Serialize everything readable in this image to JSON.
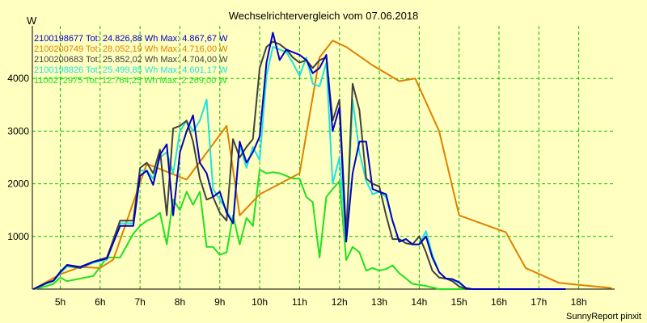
{
  "chart_data": {
    "type": "line",
    "title": "Wechselrichtervergleich vom 07.06.2018",
    "ylabel": "W",
    "xlabel": "",
    "credit": "SunnyReport pinxit",
    "ylim": [
      0,
      5000
    ],
    "xlim": [
      4.3,
      18.9
    ],
    "y_ticks": [
      1000,
      2000,
      3000,
      4000
    ],
    "y_tick_labels": [
      "1000",
      "2000",
      "3000",
      "4000"
    ],
    "x_ticks": [
      5,
      6,
      7,
      8,
      9,
      10,
      11,
      12,
      13,
      14,
      15,
      16,
      17,
      18
    ],
    "x_tick_labels": [
      "5h",
      "6h",
      "7h",
      "8h",
      "9h",
      "10h",
      "11h",
      "12h",
      "13h",
      "14h",
      "15h",
      "16h",
      "17h",
      "18h"
    ],
    "grid": true,
    "legend_position": "top-left",
    "colors": {
      "background": "#ffffc0",
      "grid": "#00c000",
      "axes": "#000000"
    },
    "series": [
      {
        "name": "2100198677",
        "legend": "2100198677 Tot: 24.826,88 Wh Max: 4.867,67 W",
        "color": "#0000c0",
        "x": [
          4.33,
          4.67,
          4.83,
          5.0,
          5.17,
          5.5,
          5.83,
          6.17,
          6.5,
          6.83,
          7.0,
          7.17,
          7.33,
          7.5,
          7.67,
          7.83,
          8.0,
          8.17,
          8.33,
          8.5,
          8.67,
          8.83,
          9.0,
          9.17,
          9.33,
          9.5,
          9.67,
          9.83,
          10.0,
          10.17,
          10.33,
          10.5,
          10.67,
          10.83,
          11.0,
          11.17,
          11.33,
          11.5,
          11.67,
          11.83,
          12.0,
          12.17,
          12.33,
          12.5,
          12.67,
          12.83,
          13.0,
          13.17,
          13.33,
          13.5,
          13.67,
          13.83,
          14.0,
          14.17,
          14.33,
          14.5,
          14.67,
          14.83,
          15.0,
          15.17,
          15.33,
          15.5,
          15.67,
          15.83,
          16.0,
          16.17,
          16.33,
          16.5,
          16.67,
          16.83,
          17.0,
          17.17,
          17.33,
          17.5,
          17.67
        ],
        "values": [
          0,
          120,
          160,
          320,
          460,
          420,
          520,
          580,
          1200,
          1200,
          2150,
          2250,
          1980,
          2550,
          2750,
          1400,
          2600,
          3000,
          3300,
          2400,
          2200,
          1750,
          1850,
          1450,
          1250,
          2800,
          2400,
          2600,
          2900,
          4300,
          4870,
          4350,
          4550,
          4500,
          4450,
          4350,
          4100,
          4200,
          4450,
          3000,
          3450,
          900,
          2200,
          2800,
          2800,
          1900,
          1850,
          1800,
          1300,
          900,
          950,
          850,
          850,
          1000,
          600,
          320,
          200,
          190,
          130,
          20,
          0,
          0,
          0,
          0,
          0,
          0,
          0,
          0,
          0,
          0,
          0,
          0,
          0,
          0,
          0
        ]
      },
      {
        "name": "2100200749",
        "legend": "2100200749 Tot: 28.052,19 Wh Max: 4.716,00 W",
        "color": "#e08000",
        "x": [
          4.33,
          5.0,
          5.5,
          6.0,
          6.33,
          7.17,
          8.17,
          9.17,
          9.5,
          10.0,
          10.5,
          11.0,
          11.5,
          11.83,
          12.17,
          12.83,
          13.5,
          13.9,
          14.5,
          15.0,
          16.17,
          16.67,
          17.5,
          18.0,
          18.83
        ],
        "values": [
          0,
          280,
          420,
          400,
          560,
          2380,
          2080,
          3100,
          1400,
          1800,
          2000,
          2200,
          4400,
          4720,
          4600,
          4250,
          3950,
          4000,
          3000,
          1400,
          1080,
          400,
          120,
          80,
          20
        ]
      },
      {
        "name": "2100200683",
        "legend": "2100200683 Tot: 25.852,02 Wh Max: 4.704,00 W",
        "color": "#404040",
        "x": [
          4.33,
          4.67,
          4.83,
          5.0,
          5.17,
          5.5,
          5.83,
          6.17,
          6.5,
          6.83,
          7.0,
          7.17,
          7.33,
          7.5,
          7.67,
          7.83,
          8.0,
          8.17,
          8.33,
          8.5,
          8.67,
          8.83,
          9.0,
          9.17,
          9.33,
          9.5,
          9.67,
          9.83,
          10.0,
          10.17,
          10.33,
          10.5,
          10.67,
          10.83,
          11.0,
          11.17,
          11.33,
          11.5,
          11.67,
          11.83,
          12.0,
          12.17,
          12.33,
          12.5,
          12.67,
          12.83,
          13.0,
          13.17,
          13.33,
          13.5,
          13.67,
          13.83,
          14.0,
          14.17,
          14.33,
          14.5,
          14.67,
          14.83,
          15.0,
          15.17,
          15.33,
          15.5,
          15.67,
          15.83,
          16.0,
          16.17,
          16.33,
          16.5,
          16.67,
          16.83,
          17.0,
          17.17,
          17.33,
          17.5,
          17.67
        ],
        "values": [
          0,
          120,
          160,
          330,
          450,
          400,
          520,
          600,
          1300,
          1300,
          2300,
          2400,
          2200,
          2650,
          1400,
          3050,
          3100,
          3200,
          2800,
          2100,
          1700,
          1750,
          1450,
          1300,
          2850,
          2500,
          2700,
          2850,
          4200,
          4600,
          4700,
          4650,
          4550,
          4400,
          4300,
          4350,
          4200,
          4350,
          4400,
          3200,
          3600,
          1000,
          3900,
          3400,
          2100,
          2000,
          1950,
          1400,
          950,
          950,
          870,
          850,
          1000,
          700,
          350,
          220,
          200,
          150,
          50,
          0,
          0,
          0,
          0,
          0,
          0,
          0,
          0,
          0,
          0,
          0,
          0,
          0,
          0,
          0,
          0
        ]
      },
      {
        "name": "2100198826",
        "legend": "2100198826 Tot: 25.499,85 Wh Max: 4.601,17 W",
        "color": "#20e0e0",
        "x": [
          4.33,
          4.67,
          4.83,
          5.0,
          5.17,
          5.5,
          5.83,
          6.17,
          6.5,
          6.83,
          7.0,
          7.17,
          7.33,
          7.5,
          7.67,
          7.83,
          8.0,
          8.17,
          8.33,
          8.5,
          8.67,
          8.83,
          9.0,
          9.17,
          9.33,
          9.5,
          9.67,
          9.83,
          10.0,
          10.17,
          10.33,
          10.5,
          10.67,
          10.83,
          11.0,
          11.17,
          11.33,
          11.5,
          11.67,
          11.83,
          12.0,
          12.17,
          12.33,
          12.5,
          12.67,
          12.83,
          13.0,
          13.17,
          13.33,
          13.5,
          13.67,
          13.83,
          14.0,
          14.17,
          14.33,
          14.5,
          14.67,
          14.83,
          15.0,
          15.17,
          15.33,
          15.5,
          15.67,
          15.83,
          16.0,
          16.17,
          16.33,
          16.5,
          16.67,
          16.83,
          17.0,
          17.17,
          17.33,
          17.5,
          17.67
        ],
        "values": [
          0,
          110,
          150,
          300,
          430,
          400,
          500,
          560,
          1250,
          1250,
          2250,
          2250,
          2100,
          2500,
          2600,
          2200,
          3000,
          3200,
          3000,
          3200,
          3600,
          1900,
          1700,
          1500,
          1250,
          2750,
          2300,
          2700,
          2450,
          4050,
          4600,
          4550,
          4500,
          4300,
          4050,
          4400,
          3900,
          3850,
          4300,
          2000,
          2500,
          950,
          3600,
          2600,
          2050,
          1800,
          1850,
          1750,
          1300,
          900,
          950,
          850,
          850,
          1100,
          650,
          320,
          200,
          180,
          120,
          0,
          0,
          0,
          0,
          0,
          0,
          0,
          0,
          0,
          0,
          0,
          0,
          0,
          0,
          0,
          0
        ]
      },
      {
        "name": "1100272975",
        "legend": "1100272975 Tot: 12.764,25 Wh Max: 2.269,00 W",
        "color": "#20e020",
        "x": [
          4.33,
          4.67,
          4.83,
          5.0,
          5.17,
          5.5,
          5.83,
          6.17,
          6.5,
          6.83,
          7.0,
          7.17,
          7.33,
          7.5,
          7.67,
          7.83,
          8.0,
          8.17,
          8.33,
          8.5,
          8.67,
          8.83,
          9.0,
          9.17,
          9.33,
          9.5,
          9.67,
          9.83,
          10.0,
          10.17,
          10.33,
          10.5,
          10.67,
          10.83,
          11.0,
          11.17,
          11.33,
          11.5,
          11.67,
          11.83,
          12.0,
          12.17,
          12.33,
          12.5,
          12.67,
          12.83,
          13.0,
          13.17,
          13.33,
          13.5,
          13.67,
          13.83,
          14.0,
          14.17,
          14.33,
          14.5,
          14.67,
          14.83,
          15.0,
          15.17,
          15.33,
          15.5,
          15.67,
          15.83,
          16.0,
          16.17,
          16.33,
          16.5,
          16.67,
          16.83,
          17.0,
          17.17,
          17.33,
          17.5,
          17.67
        ],
        "values": [
          0,
          60,
          100,
          220,
          150,
          200,
          250,
          600,
          600,
          1050,
          1200,
          1300,
          1350,
          1450,
          850,
          1700,
          1500,
          1850,
          1600,
          1850,
          800,
          800,
          650,
          700,
          1400,
          850,
          1350,
          1200,
          2269,
          2200,
          2220,
          2200,
          2150,
          2100,
          2100,
          1750,
          1650,
          600,
          1750,
          1900,
          2050,
          550,
          800,
          700,
          350,
          400,
          350,
          380,
          450,
          300,
          200,
          100,
          80,
          60,
          30,
          0,
          0,
          0,
          0,
          0,
          0,
          0,
          0,
          0,
          0,
          0,
          0,
          0,
          0,
          0,
          0,
          0,
          0,
          0,
          0
        ]
      }
    ]
  }
}
